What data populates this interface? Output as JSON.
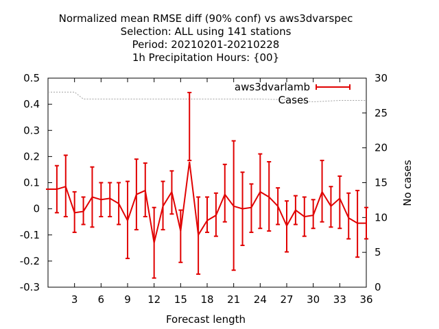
{
  "chart_data": {
    "type": "line",
    "title_lines": [
      "Normalized mean RMSE diff (90% conf) vs aws3dvarspec",
      "Selection: ALL using   141 stations",
      "Period: 20210201-20210228",
      "1h Precipitation   Hours: {00}"
    ],
    "xlabel": "Forecast length",
    "ylabel": "",
    "y2label": "No cases",
    "xlim": [
      0,
      36
    ],
    "ylim": [
      -0.3,
      0.5
    ],
    "y2lim": [
      0,
      30
    ],
    "xticks": [
      3,
      6,
      9,
      12,
      15,
      18,
      21,
      24,
      27,
      30,
      33,
      36
    ],
    "yticks": [
      -0.3,
      -0.2,
      -0.1,
      0,
      0.1,
      0.2,
      0.3,
      0.4,
      0.5
    ],
    "ytick_labels": [
      "-0.3",
      "-0.2",
      "-0.1",
      "0",
      "0.1",
      "0.2",
      "0.3",
      "0.4",
      "0.5"
    ],
    "y2ticks": [
      0,
      5,
      10,
      15,
      20,
      25,
      30
    ],
    "legend_position": "top-right",
    "grid": false,
    "series": [
      {
        "name": "aws3dvarlamb",
        "color": "#e00000",
        "x": [
          0,
          1,
          2,
          3,
          4,
          5,
          6,
          7,
          8,
          9,
          10,
          11,
          12,
          13,
          14,
          15,
          16,
          17,
          18,
          19,
          20,
          21,
          22,
          23,
          24,
          25,
          26,
          27,
          28,
          29,
          30,
          31,
          32,
          33,
          34,
          35,
          36
        ],
        "y": [
          0.075,
          0.075,
          0.085,
          -0.015,
          -0.01,
          0.045,
          0.035,
          0.04,
          0.02,
          -0.045,
          0.055,
          0.07,
          -0.13,
          0.01,
          0.065,
          -0.085,
          0.18,
          -0.1,
          -0.045,
          -0.025,
          0.055,
          0.01,
          0,
          0.005,
          0.065,
          0.045,
          0.01,
          -0.065,
          -0.005,
          -0.03,
          -0.025,
          0.065,
          0.01,
          0.04,
          -0.035,
          -0.055,
          -0.055
        ],
        "lower": [
          0.075,
          -0.015,
          -0.03,
          -0.09,
          -0.06,
          -0.07,
          -0.03,
          -0.03,
          -0.06,
          -0.19,
          -0.08,
          -0.03,
          -0.265,
          -0.08,
          -0.02,
          -0.205,
          0.185,
          -0.25,
          -0.09,
          -0.105,
          -0.05,
          -0.235,
          -0.14,
          -0.09,
          -0.075,
          -0.085,
          -0.06,
          -0.165,
          -0.06,
          -0.105,
          -0.075,
          -0.05,
          -0.07,
          -0.075,
          -0.115,
          -0.185,
          -0.115
        ],
        "upper": [
          0.075,
          0.165,
          0.205,
          0.065,
          0.045,
          0.16,
          0.1,
          0.1,
          0.1,
          0.105,
          0.19,
          0.175,
          0.005,
          0.105,
          0.145,
          -0.005,
          0.445,
          0.045,
          0.045,
          0.06,
          0.17,
          0.26,
          0.14,
          0.095,
          0.21,
          0.18,
          0.08,
          0.03,
          0.05,
          0.045,
          0.035,
          0.185,
          0.085,
          0.125,
          0.06,
          0.07,
          0.005
        ]
      },
      {
        "name": "Cases",
        "color": "#a0a0a0",
        "axis": "right",
        "x": [
          0,
          3,
          3.5,
          4,
          6,
          9,
          12,
          15,
          18,
          21,
          24,
          27,
          30,
          33,
          36
        ],
        "y": [
          28,
          28,
          27.5,
          27,
          27,
          27,
          27,
          27,
          27,
          27,
          27,
          26.9,
          26.6,
          26.8,
          26.8
        ]
      }
    ]
  }
}
